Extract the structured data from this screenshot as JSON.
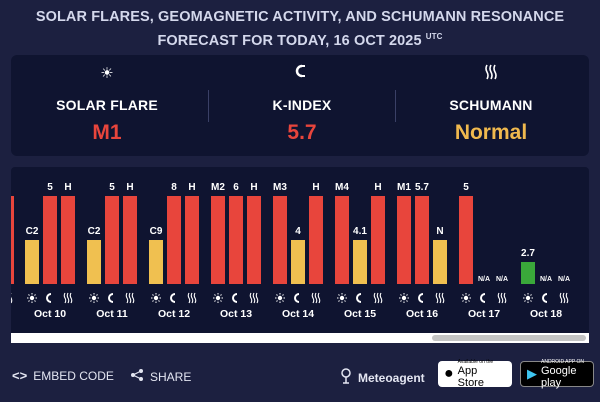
{
  "header": {
    "line1": "SOLAR FLARES, GEOMAGNETIC ACTIVITY, AND SCHUMANN RESONANCE",
    "line2": "FORECAST FOR TODAY, 16 OCT 2025",
    "tz": "UTC"
  },
  "summary": {
    "solar_flare": {
      "icon": "sun-icon",
      "label": "SOLAR FLARE",
      "value": "M1",
      "color": "#e8453c"
    },
    "k_index": {
      "icon": "magnet-icon",
      "label": "K-INDEX",
      "value": "5.7",
      "color": "#e8453c"
    },
    "schumann": {
      "icon": "waves-icon",
      "label": "SCHUMANN",
      "value": "Normal",
      "color": "#f0b94e"
    }
  },
  "legend_colors": {
    "red": "#e8453c",
    "yellow": "#f0c050",
    "green": "#3aa83a"
  },
  "chart_data": {
    "type": "bar",
    "days": [
      {
        "date": "Oct 10",
        "bars": [
          {
            "label": "C2",
            "level": 0.5,
            "color": "yellow"
          },
          {
            "label": "5",
            "level": 1,
            "color": "red"
          },
          {
            "label": "H",
            "level": 1,
            "color": "red"
          }
        ]
      },
      {
        "date": "Oct 11",
        "bars": [
          {
            "label": "C2",
            "level": 0.5,
            "color": "yellow"
          },
          {
            "label": "5",
            "level": 1,
            "color": "red"
          },
          {
            "label": "H",
            "level": 1,
            "color": "red"
          }
        ]
      },
      {
        "date": "Oct 12",
        "bars": [
          {
            "label": "C9",
            "level": 0.5,
            "color": "yellow"
          },
          {
            "label": "8",
            "level": 1,
            "color": "red"
          },
          {
            "label": "H",
            "level": 1,
            "color": "red"
          }
        ]
      },
      {
        "date": "Oct 13",
        "bars": [
          {
            "label": "M2",
            "level": 1,
            "color": "red"
          },
          {
            "label": "6",
            "level": 1,
            "color": "red"
          },
          {
            "label": "H",
            "level": 1,
            "color": "red"
          }
        ]
      },
      {
        "date": "Oct 14",
        "bars": [
          {
            "label": "M3",
            "level": 1,
            "color": "red"
          },
          {
            "label": "4",
            "level": 0.5,
            "color": "yellow"
          },
          {
            "label": "H",
            "level": 1,
            "color": "red"
          }
        ]
      },
      {
        "date": "Oct 15",
        "bars": [
          {
            "label": "M4",
            "level": 1,
            "color": "red"
          },
          {
            "label": "4.1",
            "level": 0.5,
            "color": "yellow"
          },
          {
            "label": "H",
            "level": 1,
            "color": "red"
          }
        ]
      },
      {
        "date": "Oct 16",
        "bars": [
          {
            "label": "M1",
            "level": 1,
            "color": "red"
          },
          {
            "label": "5.7",
            "level": 1,
            "color": "red"
          },
          {
            "label": "N",
            "level": 0.5,
            "color": "yellow"
          }
        ]
      },
      {
        "date": "Oct 17",
        "bars": [
          {
            "label": "5",
            "level": 1,
            "color": "red"
          },
          {
            "label": "N/A",
            "level": 0,
            "color": "none"
          },
          {
            "label": "N/A",
            "level": 0,
            "color": "none"
          }
        ]
      },
      {
        "date": "Oct 18",
        "bars": [
          {
            "label": "2.7",
            "level": 0.25,
            "color": "green"
          },
          {
            "label": "N/A",
            "level": 0,
            "color": "none"
          },
          {
            "label": "N/A",
            "level": 0,
            "color": "none"
          }
        ]
      }
    ]
  },
  "footer": {
    "embed": "EMBED CODE",
    "share": "SHARE",
    "brand": "Meteoagent",
    "appstore_small": "Available on the",
    "appstore_big": "App Store",
    "google_small": "ANDROID APP ON",
    "google_big": "Google play"
  }
}
